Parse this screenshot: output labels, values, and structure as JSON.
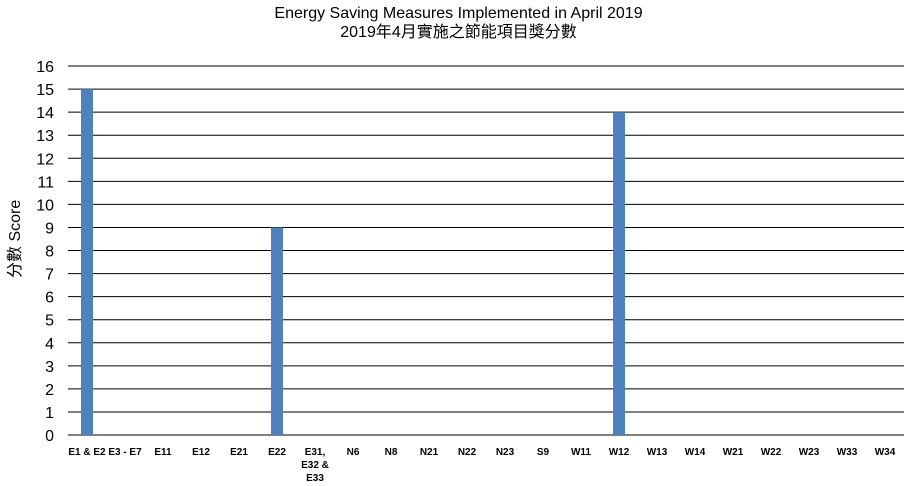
{
  "chart_data": {
    "type": "bar",
    "title": "Energy Saving Measures Implemented in April 2019",
    "subtitle": "2019年4月實施之節能項目獎分數",
    "xlabel": "",
    "ylabel": "分數 Score",
    "ylim": [
      0,
      16
    ],
    "yticks": [
      0,
      1,
      2,
      3,
      4,
      5,
      6,
      7,
      8,
      9,
      10,
      11,
      12,
      13,
      14,
      15,
      16
    ],
    "grid": true,
    "bar_color": "#4f81bd",
    "categories": [
      "E1 & E2",
      "E3 - E7",
      "E11",
      "E12",
      "E21",
      "E22",
      "E31, E32 & E33",
      "N6",
      "N8",
      "N21",
      "N22",
      "N23",
      "S9",
      "W11",
      "W12",
      "W13",
      "W14",
      "W21",
      "W22",
      "W23",
      "W33",
      "W34"
    ],
    "category_lines": [
      [
        "E1 & E2"
      ],
      [
        "E3 - E7"
      ],
      [
        "E11"
      ],
      [
        "E12"
      ],
      [
        "E21"
      ],
      [
        "E22"
      ],
      [
        "E31,",
        "E32 &",
        "E33"
      ],
      [
        "N6"
      ],
      [
        "N8"
      ],
      [
        "N21"
      ],
      [
        "N22"
      ],
      [
        "N23"
      ],
      [
        "S9"
      ],
      [
        "W11"
      ],
      [
        "W12"
      ],
      [
        "W13"
      ],
      [
        "W14"
      ],
      [
        "W21"
      ],
      [
        "W22"
      ],
      [
        "W23"
      ],
      [
        "W33"
      ],
      [
        "W34"
      ]
    ],
    "values": [
      15,
      0,
      0,
      0,
      0,
      9,
      0,
      0,
      0,
      0,
      0,
      0,
      0,
      0,
      14,
      0,
      0,
      0,
      0,
      0,
      0,
      0
    ]
  }
}
